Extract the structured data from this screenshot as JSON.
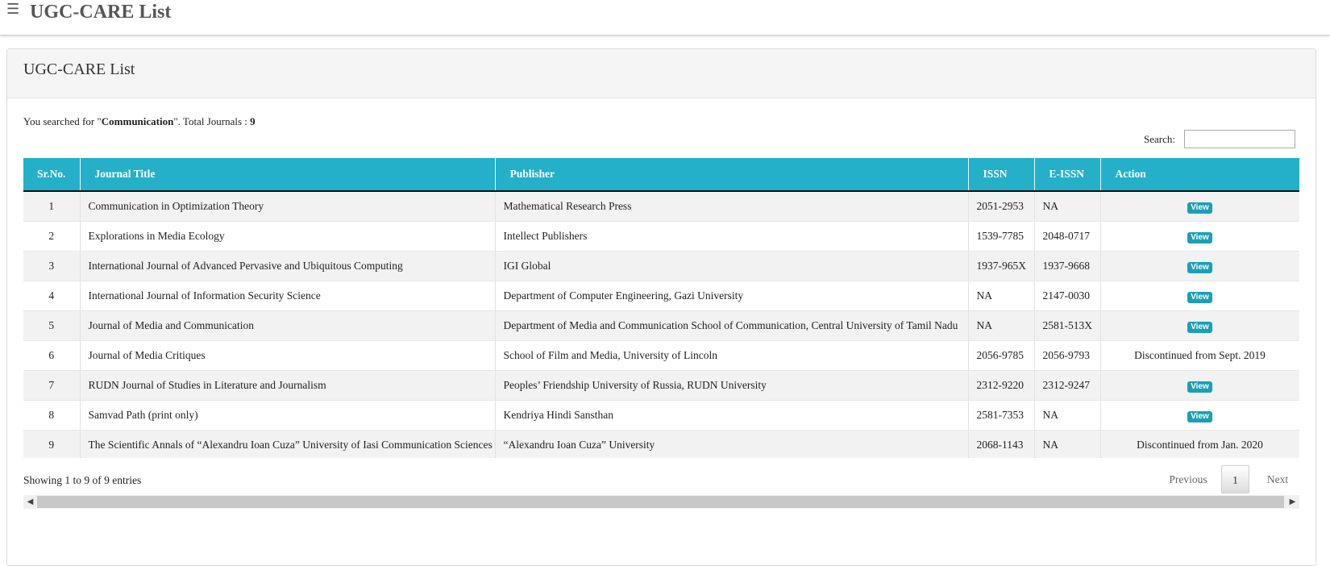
{
  "header": {
    "menu_icon": "☰",
    "title": "UGC-CARE List"
  },
  "panel": {
    "title": "UGC-CARE List"
  },
  "search": {
    "prefix": "You searched for \"",
    "term": "Communication",
    "middle": "\". Total Journals : ",
    "total": "9",
    "label": "Search:",
    "value": ""
  },
  "table": {
    "columns": {
      "sr": "Sr.No.",
      "title": "Journal Title",
      "publisher": "Publisher",
      "issn": "ISSN",
      "eissn": "E-ISSN",
      "action": "Action"
    },
    "rows": [
      {
        "sr": "1",
        "title": "Communication in Optimization Theory",
        "publisher": "Mathematical Research Press",
        "issn": "2051-2953",
        "eissn": "NA",
        "action": "View",
        "action_type": "button"
      },
      {
        "sr": "2",
        "title": "Explorations in Media Ecology",
        "publisher": "Intellect Publishers",
        "issn": "1539-7785",
        "eissn": "2048-0717",
        "action": "View",
        "action_type": "button"
      },
      {
        "sr": "3",
        "title": "International Journal of Advanced Pervasive and Ubiquitous Computing",
        "publisher": "IGI Global",
        "issn": "1937-965X",
        "eissn": "1937-9668",
        "action": "View",
        "action_type": "button"
      },
      {
        "sr": "4",
        "title": "International Journal of Information Security Science",
        "publisher": "Department of Computer Engineering, Gazi University",
        "issn": "NA",
        "eissn": "2147-0030",
        "action": "View",
        "action_type": "button"
      },
      {
        "sr": "5",
        "title": "Journal of Media and Communication",
        "publisher": "Department of Media and Communication School of Communication, Central University of Tamil Nadu",
        "issn": "NA",
        "eissn": "2581-513X",
        "action": "View",
        "action_type": "button"
      },
      {
        "sr": "6",
        "title": "Journal of Media Critiques",
        "publisher": "School of Film and Media, University of Lincoln",
        "issn": "2056-9785",
        "eissn": "2056-9793",
        "action": "Discontinued from Sept. 2019",
        "action_type": "text"
      },
      {
        "sr": "7",
        "title": "RUDN Journal of Studies in Literature and Journalism",
        "publisher": "Peoples’ Friendship University of Russia, RUDN University",
        "issn": "2312-9220",
        "eissn": "2312-9247",
        "action": "View",
        "action_type": "button"
      },
      {
        "sr": "8",
        "title": "Samvad Path (print only)",
        "publisher": "Kendriya Hindi Sansthan",
        "issn": "2581-7353",
        "eissn": "NA",
        "action": "View",
        "action_type": "button"
      },
      {
        "sr": "9",
        "title": "The Scientific Annals of “Alexandru Ioan Cuza” University of Iasi Communication Sciences",
        "publisher": "“Alexandru Ioan Cuza” University",
        "issn": "2068-1143",
        "eissn": "NA",
        "action": "Discontinued from Jan. 2020",
        "action_type": "text"
      }
    ]
  },
  "footer": {
    "showing": "Showing 1 to 9 of 9 entries",
    "previous": "Previous",
    "page": "1",
    "next": "Next"
  },
  "scrollbar": {
    "left_arrow": "◀",
    "right_arrow": "▶"
  },
  "colors": {
    "table_header": "#23b0c8",
    "view_button": "#1b9fb5"
  }
}
